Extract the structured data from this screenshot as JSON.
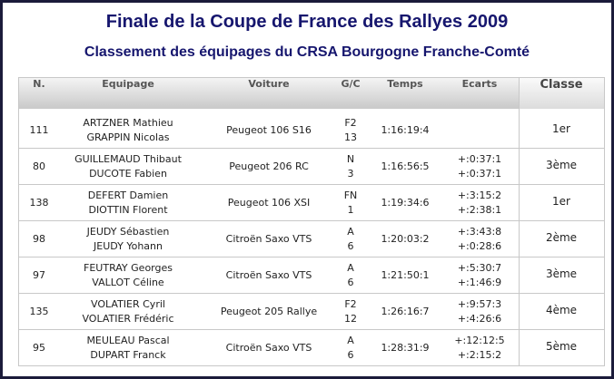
{
  "header": {
    "title": "Finale de la Coupe de France des Rallyes 2009",
    "subtitle": "Classement des équipages du CRSA Bourgogne Franche-Comté"
  },
  "table": {
    "columns": [
      "N.",
      "Equipage",
      "Voiture",
      "G/C",
      "Temps",
      "Ecarts",
      "Classe"
    ],
    "rows": [
      {
        "number": "111",
        "crew": [
          "ARTZNER Mathieu",
          "GRAPPIN Nicolas"
        ],
        "car": "Peugeot 106 S16",
        "group_class": [
          "F2",
          "13"
        ],
        "time": "1:16:19:4",
        "gaps": [],
        "rank": "1er"
      },
      {
        "number": "80",
        "crew": [
          "GUILLEMAUD Thibaut",
          "DUCOTE Fabien"
        ],
        "car": "Peugeot 206 RC",
        "group_class": [
          "N",
          "3"
        ],
        "time": "1:16:56:5",
        "gaps": [
          "+:0:37:1",
          "+:0:37:1"
        ],
        "rank": "3ème"
      },
      {
        "number": "138",
        "crew": [
          "DEFERT Damien",
          "DIOTTIN Florent"
        ],
        "car": "Peugeot 106 XSI",
        "group_class": [
          "FN",
          "1"
        ],
        "time": "1:19:34:6",
        "gaps": [
          "+:3:15:2",
          "+:2:38:1"
        ],
        "rank": "1er"
      },
      {
        "number": "98",
        "crew": [
          "JEUDY Sébastien",
          "JEUDY Yohann"
        ],
        "car": "Citroën Saxo VTS",
        "group_class": [
          "A",
          "6"
        ],
        "time": "1:20:03:2",
        "gaps": [
          "+:3:43:8",
          "+:0:28:6"
        ],
        "rank": "2ème"
      },
      {
        "number": "97",
        "crew": [
          "FEUTRAY Georges",
          "VALLOT Céline"
        ],
        "car": "Citroën Saxo VTS",
        "group_class": [
          "A",
          "6"
        ],
        "time": "1:21:50:1",
        "gaps": [
          "+:5:30:7",
          "+:1:46:9"
        ],
        "rank": "3ème"
      },
      {
        "number": "135",
        "crew": [
          "VOLATIER Cyril",
          "VOLATIER Frédéric"
        ],
        "car": "Peugeot 205 Rallye",
        "group_class": [
          "F2",
          "12"
        ],
        "time": "1:26:16:7",
        "gaps": [
          "+:9:57:3",
          "+:4:26:6"
        ],
        "rank": "4ème"
      },
      {
        "number": "95",
        "crew": [
          "MEULEAU Pascal",
          "DUPART Franck"
        ],
        "car": "Citroën Saxo VTS",
        "group_class": [
          "A",
          "6"
        ],
        "time": "1:28:31:9",
        "gaps": [
          "+:12:12:5",
          "+:2:15:2"
        ],
        "rank": "5ème"
      }
    ]
  }
}
